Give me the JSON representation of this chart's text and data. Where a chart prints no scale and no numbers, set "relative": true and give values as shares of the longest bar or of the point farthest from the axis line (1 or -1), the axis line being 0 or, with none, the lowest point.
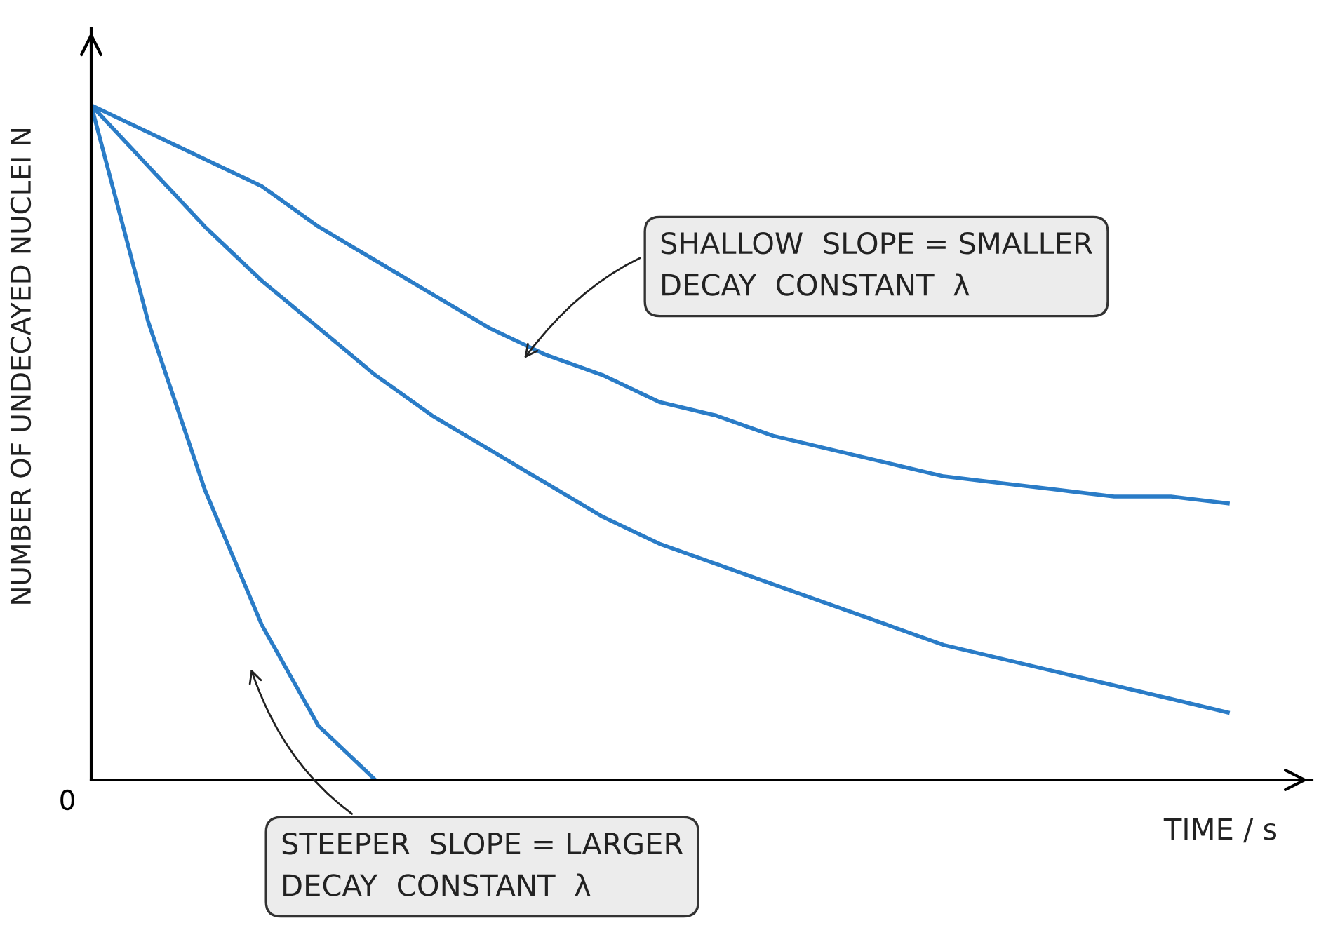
{
  "chart_data": {
    "type": "line",
    "relative": true,
    "xlabel": "TIME / s",
    "ylabel": "NUMBER OF UNDECAYED NUCLEI N",
    "categories": [
      null,
      null,
      null,
      null,
      null,
      null,
      null,
      null,
      null,
      null,
      null,
      null,
      null,
      null,
      null,
      null,
      null,
      null,
      null,
      null,
      null
    ],
    "series": [
      {
        "color": "#2a7cc7",
        "values": [
          1.0,
          0.96,
          0.92,
          0.88,
          0.82,
          0.77,
          0.72,
          0.67,
          0.63,
          0.6,
          0.56,
          0.54,
          0.51,
          0.49,
          0.47,
          0.45,
          0.44,
          0.43,
          0.42,
          0.42,
          0.41
        ]
      },
      {
        "color": "#2a7cc7",
        "values": [
          1.0,
          0.91,
          0.82,
          0.74,
          0.67,
          0.6,
          0.54,
          0.49,
          0.44,
          0.39,
          0.35,
          0.32,
          0.29,
          0.26,
          0.23,
          0.2,
          0.18,
          0.16,
          0.14,
          0.12,
          0.1
        ]
      },
      {
        "color": "#2a7cc7",
        "values": [
          1.0,
          0.68,
          0.43,
          0.23,
          0.08,
          0.0,
          null,
          null,
          null,
          null,
          null,
          null,
          null,
          null,
          null,
          null,
          null,
          null,
          null,
          null,
          null
        ]
      }
    ],
    "annotations": [
      "0",
      "SHALLOW  SLOPE = SMALLER\nDECAY  CONSTANT  λ",
      "STEEPER  SLOPE = LARGER\nDECAY  CONSTANT  λ"
    ],
    "grid": false,
    "legend": false,
    "marker": "none",
    "line_style": "solid"
  }
}
